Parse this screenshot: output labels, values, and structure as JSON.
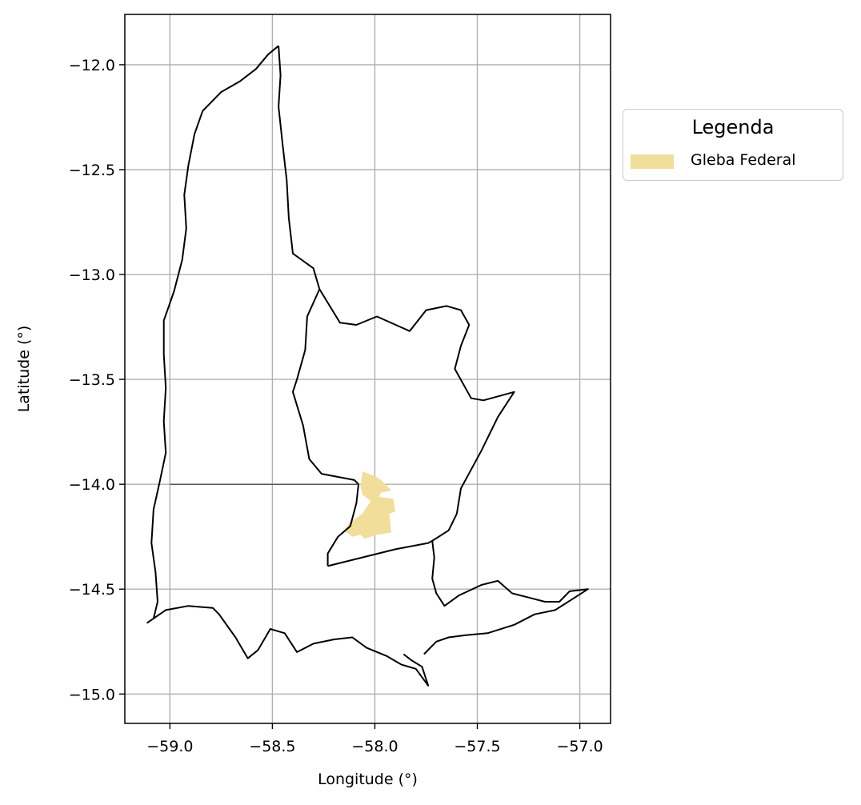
{
  "chart_data": {
    "type": "map",
    "xlabel": "Longitude (°)",
    "ylabel": "Latitude (°)",
    "xlim": [
      -59.22,
      -56.85
    ],
    "ylim": [
      -15.14,
      -11.76
    ],
    "xticks": [
      -59.0,
      -58.5,
      -58.0,
      -57.5,
      -57.0
    ],
    "xtick_labels": [
      "−59.0",
      "−58.5",
      "−58.0",
      "−57.5",
      "−57.0"
    ],
    "yticks": [
      -12.0,
      -12.5,
      -13.0,
      -13.5,
      -14.0,
      -14.5,
      -15.0
    ],
    "ytick_labels": [
      "−12.0",
      "−12.5",
      "−13.0",
      "−13.5",
      "−14.0",
      "−14.5",
      "−15.0"
    ],
    "grid": true,
    "legend": {
      "title": "Legenda",
      "placement": "outside upper-right",
      "entries": [
        {
          "label": "Gleba Federal",
          "color": "#f0de9a"
        }
      ]
    },
    "boundary_color": "#000000",
    "west_municipality_outline": [
      [
        -58.47,
        -11.91
      ],
      [
        -58.52,
        -11.95
      ],
      [
        -58.58,
        -12.02
      ],
      [
        -58.66,
        -12.08
      ],
      [
        -58.75,
        -12.13
      ],
      [
        -58.84,
        -12.22
      ],
      [
        -58.88,
        -12.33
      ],
      [
        -58.91,
        -12.48
      ],
      [
        -58.93,
        -12.62
      ],
      [
        -58.92,
        -12.78
      ],
      [
        -58.94,
        -12.93
      ],
      [
        -58.98,
        -13.08
      ],
      [
        -59.03,
        -13.22
      ],
      [
        -59.03,
        -13.38
      ],
      [
        -59.02,
        -13.54
      ],
      [
        -59.03,
        -13.7
      ],
      [
        -59.02,
        -13.85
      ],
      [
        -59.05,
        -13.99
      ],
      [
        -59.08,
        -14.12
      ],
      [
        -59.09,
        -14.28
      ],
      [
        -59.07,
        -14.42
      ],
      [
        -59.06,
        -14.56
      ],
      [
        -59.08,
        -14.64
      ],
      [
        -59.11,
        -14.66
      ],
      [
        -59.02,
        -14.6
      ],
      [
        -58.91,
        -14.58
      ],
      [
        -58.79,
        -14.59
      ],
      [
        -58.76,
        -14.62
      ],
      [
        -58.68,
        -14.73
      ],
      [
        -58.62,
        -14.83
      ],
      [
        -58.57,
        -14.79
      ],
      [
        -58.51,
        -14.69
      ],
      [
        -58.44,
        -14.71
      ],
      [
        -58.38,
        -14.8
      ],
      [
        -58.3,
        -14.76
      ],
      [
        -58.2,
        -14.74
      ],
      [
        -58.11,
        -14.73
      ],
      [
        -58.04,
        -14.78
      ],
      [
        -57.94,
        -14.82
      ],
      [
        -57.87,
        -14.86
      ],
      [
        -57.8,
        -14.88
      ],
      [
        -57.74,
        -14.96
      ],
      [
        -57.77,
        -14.87
      ],
      [
        -57.82,
        -14.84
      ],
      [
        -57.86,
        -14.81
      ]
    ],
    "west_municipality_east_edge": [
      [
        -58.47,
        -11.91
      ],
      [
        -58.46,
        -12.05
      ],
      [
        -58.47,
        -12.2
      ],
      [
        -58.45,
        -12.38
      ],
      [
        -58.43,
        -12.55
      ],
      [
        -58.42,
        -12.73
      ],
      [
        -58.4,
        -12.9
      ],
      [
        -58.3,
        -12.97
      ],
      [
        -58.27,
        -13.07
      ],
      [
        -58.33,
        -13.2
      ],
      [
        -58.34,
        -13.36
      ],
      [
        -58.38,
        -13.5
      ],
      [
        -58.4,
        -13.56
      ],
      [
        -58.35,
        -13.72
      ],
      [
        -58.32,
        -13.88
      ],
      [
        -58.26,
        -13.95
      ],
      [
        -58.1,
        -13.98
      ],
      [
        -58.08,
        -14.0
      ],
      [
        -58.09,
        -14.09
      ],
      [
        -58.12,
        -14.2
      ],
      [
        -58.18,
        -14.25
      ],
      [
        -58.23,
        -14.33
      ],
      [
        -58.23,
        -14.39
      ]
    ],
    "west_municipality_south_cut": [
      [
        -59.0,
        -14.0
      ],
      [
        -58.08,
        -14.0
      ]
    ],
    "central_municipality_outline": [
      [
        -58.27,
        -13.07
      ],
      [
        -58.22,
        -13.15
      ],
      [
        -58.17,
        -13.23
      ],
      [
        -58.09,
        -13.24
      ],
      [
        -57.99,
        -13.2
      ],
      [
        -57.83,
        -13.27
      ],
      [
        -57.75,
        -13.17
      ],
      [
        -57.65,
        -13.15
      ],
      [
        -57.58,
        -13.17
      ],
      [
        -57.54,
        -13.24
      ],
      [
        -57.58,
        -13.34
      ],
      [
        -57.61,
        -13.45
      ],
      [
        -57.53,
        -13.59
      ],
      [
        -57.47,
        -13.6
      ],
      [
        -57.32,
        -13.56
      ],
      [
        -57.4,
        -13.68
      ],
      [
        -57.48,
        -13.84
      ],
      [
        -57.53,
        -13.93
      ],
      [
        -57.58,
        -14.02
      ],
      [
        -57.6,
        -14.14
      ],
      [
        -57.64,
        -14.22
      ],
      [
        -57.72,
        -14.27
      ],
      [
        -57.74,
        -14.28
      ],
      [
        -57.9,
        -14.31
      ],
      [
        -58.23,
        -14.39
      ]
    ],
    "east_municipality_outline": [
      [
        -57.72,
        -14.27
      ],
      [
        -57.71,
        -14.35
      ],
      [
        -57.72,
        -14.45
      ],
      [
        -57.7,
        -14.52
      ],
      [
        -57.66,
        -14.58
      ],
      [
        -57.59,
        -14.53
      ],
      [
        -57.48,
        -14.48
      ],
      [
        -57.4,
        -14.46
      ],
      [
        -57.33,
        -14.52
      ],
      [
        -57.25,
        -14.54
      ],
      [
        -57.17,
        -14.56
      ],
      [
        -57.1,
        -14.56
      ],
      [
        -57.05,
        -14.51
      ],
      [
        -56.96,
        -14.5
      ],
      [
        -57.04,
        -14.55
      ],
      [
        -57.12,
        -14.6
      ],
      [
        -57.22,
        -14.62
      ],
      [
        -57.32,
        -14.67
      ],
      [
        -57.45,
        -14.71
      ],
      [
        -57.56,
        -14.72
      ],
      [
        -57.64,
        -14.73
      ],
      [
        -57.7,
        -14.75
      ],
      [
        -57.76,
        -14.81
      ]
    ],
    "gleba_federal_polygon": [
      [
        -58.06,
        -13.94
      ],
      [
        -58.0,
        -13.96
      ],
      [
        -57.97,
        -13.98
      ],
      [
        -57.92,
        -14.03
      ],
      [
        -57.97,
        -14.04
      ],
      [
        -57.98,
        -14.06
      ],
      [
        -57.91,
        -14.07
      ],
      [
        -57.9,
        -14.13
      ],
      [
        -57.93,
        -14.14
      ],
      [
        -57.92,
        -14.23
      ],
      [
        -57.99,
        -14.24
      ],
      [
        -58.05,
        -14.26
      ],
      [
        -58.07,
        -14.24
      ],
      [
        -58.11,
        -14.25
      ],
      [
        -58.15,
        -14.22
      ],
      [
        -58.12,
        -14.18
      ],
      [
        -58.06,
        -14.14
      ],
      [
        -58.02,
        -14.08
      ],
      [
        -58.06,
        -14.05
      ],
      [
        -58.07,
        -14.01
      ]
    ]
  }
}
